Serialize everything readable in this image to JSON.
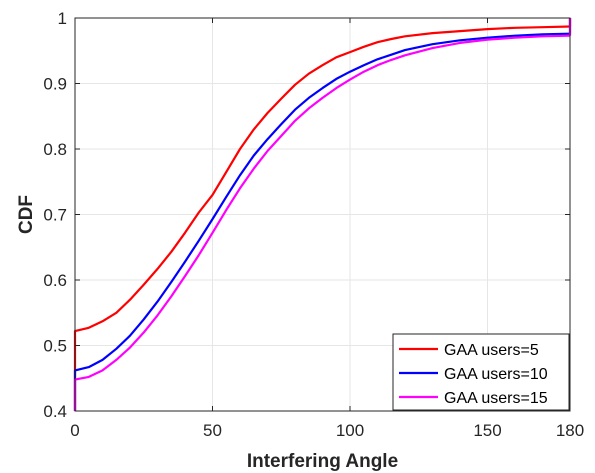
{
  "chart_data": {
    "type": "line",
    "title": "",
    "xlabel": "Interfering Angle",
    "ylabel": "CDF",
    "xlim": [
      0,
      180
    ],
    "ylim": [
      0.4,
      1
    ],
    "xticks": [
      "0",
      "50",
      "100",
      "150",
      "180"
    ],
    "xtick_values": [
      0,
      50,
      100,
      150,
      180
    ],
    "yticks": [
      "0.4",
      "0.5",
      "0.6",
      "0.7",
      "0.8",
      "0.9",
      "1"
    ],
    "ytick_values": [
      0.4,
      0.5,
      0.6,
      0.7,
      0.8,
      0.9,
      1.0
    ],
    "grid": true,
    "legend_position": "bottom-right",
    "series": [
      {
        "name": "GAA users=5",
        "color": "#ff0000",
        "x": [
          0,
          0,
          5,
          10,
          15,
          20,
          25,
          30,
          35,
          40,
          45,
          50,
          55,
          60,
          65,
          70,
          75,
          80,
          85,
          90,
          95,
          100,
          105,
          110,
          115,
          120,
          130,
          140,
          150,
          160,
          170,
          180
        ],
        "y": [
          0.4,
          0.522,
          0.527,
          0.537,
          0.55,
          0.57,
          0.593,
          0.617,
          0.643,
          0.672,
          0.703,
          0.73,
          0.765,
          0.8,
          0.83,
          0.855,
          0.877,
          0.898,
          0.915,
          0.928,
          0.94,
          0.948,
          0.956,
          0.963,
          0.968,
          0.972,
          0.977,
          0.98,
          0.983,
          0.985,
          0.986,
          0.987
        ]
      },
      {
        "name": "GAA users=10",
        "color": "#0000ff",
        "x": [
          0,
          0,
          5,
          10,
          15,
          20,
          25,
          30,
          35,
          40,
          45,
          50,
          55,
          60,
          65,
          70,
          75,
          80,
          85,
          90,
          95,
          100,
          105,
          110,
          115,
          120,
          130,
          140,
          150,
          160,
          170,
          180
        ],
        "y": [
          0.4,
          0.462,
          0.467,
          0.478,
          0.495,
          0.515,
          0.54,
          0.567,
          0.597,
          0.628,
          0.66,
          0.693,
          0.727,
          0.76,
          0.79,
          0.815,
          0.838,
          0.86,
          0.878,
          0.893,
          0.907,
          0.918,
          0.928,
          0.937,
          0.944,
          0.951,
          0.96,
          0.966,
          0.97,
          0.973,
          0.975,
          0.976
        ]
      },
      {
        "name": "GAA users=15",
        "color": "#ff00ff",
        "x": [
          0,
          0,
          5,
          10,
          15,
          20,
          25,
          30,
          35,
          40,
          45,
          50,
          55,
          60,
          65,
          70,
          75,
          80,
          85,
          90,
          95,
          100,
          105,
          110,
          115,
          120,
          130,
          140,
          150,
          160,
          170,
          180
        ],
        "y": [
          0.4,
          0.448,
          0.452,
          0.462,
          0.478,
          0.497,
          0.52,
          0.546,
          0.575,
          0.606,
          0.638,
          0.672,
          0.707,
          0.74,
          0.77,
          0.797,
          0.82,
          0.843,
          0.862,
          0.878,
          0.893,
          0.906,
          0.918,
          0.928,
          0.936,
          0.943,
          0.954,
          0.962,
          0.967,
          0.97,
          0.972,
          0.973
        ]
      }
    ]
  }
}
